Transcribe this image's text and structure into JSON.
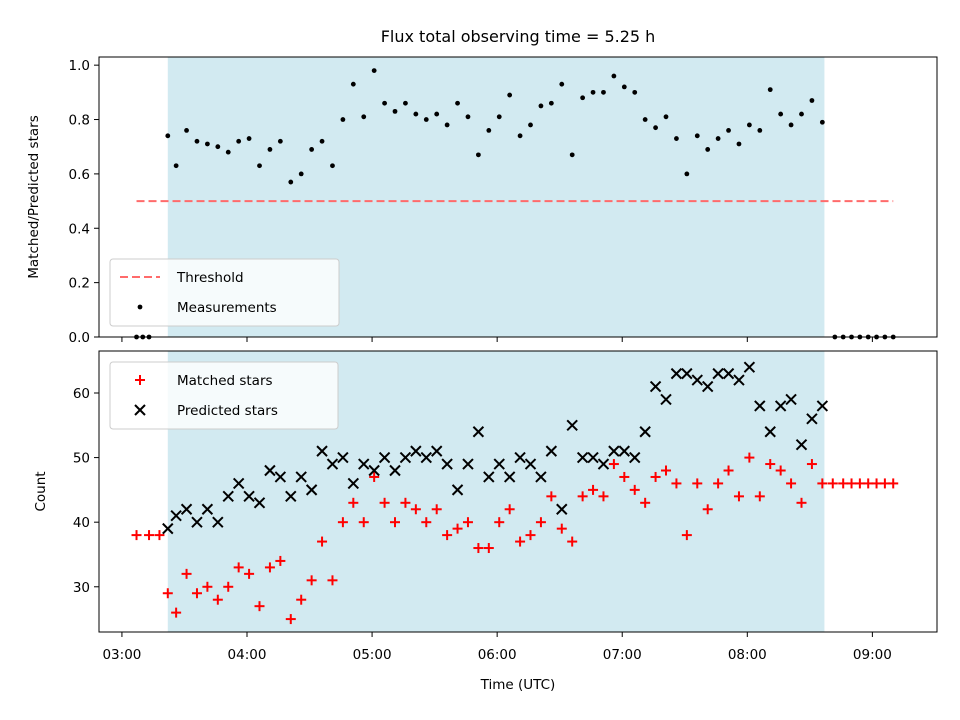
{
  "title": "Flux total observing time = 5.25 h",
  "colors": {
    "observing_window": "#add8e6",
    "threshold": "#ff6b6b",
    "measurement": "#000000",
    "matched": "#ff0000",
    "predicted": "#000000"
  },
  "chart_data": [
    {
      "type": "scatter",
      "panel": "top",
      "ylabel": "Matched/Predicted stars",
      "ylim": [
        0,
        1.03
      ],
      "yticks": [
        "0.0",
        "0.2",
        "0.4",
        "0.6",
        "0.8",
        "1.0"
      ],
      "xlim": [
        "02:49",
        "09:31"
      ],
      "xticks": [
        "03:00",
        "04:00",
        "05:00",
        "06:00",
        "07:00",
        "08:00",
        "09:00"
      ],
      "observing_window": [
        "03:22",
        "08:37"
      ],
      "legend": {
        "position": "lower-left",
        "entries": [
          "Threshold",
          "Measurements"
        ]
      },
      "series": [
        {
          "name": "Threshold",
          "style": "dashed-line",
          "x": [
            "03:07",
            "09:10"
          ],
          "y": [
            0.5,
            0.5
          ]
        },
        {
          "name": "Measurements",
          "style": "dot",
          "x": [
            "03:07",
            "03:10",
            "03:13",
            "03:22",
            "03:26",
            "03:31",
            "03:36",
            "03:41",
            "03:46",
            "03:51",
            "03:56",
            "04:01",
            "04:06",
            "04:11",
            "04:16",
            "04:21",
            "04:26",
            "04:31",
            "04:36",
            "04:41",
            "04:46",
            "04:51",
            "04:56",
            "05:01",
            "05:06",
            "05:11",
            "05:16",
            "05:21",
            "05:26",
            "05:31",
            "05:36",
            "05:41",
            "05:46",
            "05:51",
            "05:56",
            "06:01",
            "06:06",
            "06:11",
            "06:16",
            "06:21",
            "06:26",
            "06:31",
            "06:36",
            "06:41",
            "06:46",
            "06:51",
            "06:56",
            "07:01",
            "07:06",
            "07:11",
            "07:16",
            "07:21",
            "07:26",
            "07:31",
            "07:36",
            "07:41",
            "07:46",
            "07:51",
            "07:56",
            "08:01",
            "08:06",
            "08:11",
            "08:16",
            "08:21",
            "08:26",
            "08:31",
            "08:36",
            "08:42",
            "08:46",
            "08:50",
            "08:54",
            "08:58",
            "09:02",
            "09:06",
            "09:10"
          ],
          "y": [
            0,
            0,
            0,
            0.74,
            0.63,
            0.76,
            0.72,
            0.71,
            0.7,
            0.68,
            0.72,
            0.73,
            0.63,
            0.69,
            0.72,
            0.57,
            0.6,
            0.69,
            0.72,
            0.63,
            0.8,
            0.93,
            0.81,
            0.98,
            0.86,
            0.83,
            0.86,
            0.82,
            0.8,
            0.82,
            0.78,
            0.86,
            0.81,
            0.67,
            0.76,
            0.81,
            0.89,
            0.74,
            0.78,
            0.85,
            0.86,
            0.93,
            0.67,
            0.88,
            0.9,
            0.9,
            0.96,
            0.92,
            0.9,
            0.8,
            0.77,
            0.81,
            0.73,
            0.6,
            0.74,
            0.69,
            0.73,
            0.76,
            0.71,
            0.78,
            0.76,
            0.91,
            0.82,
            0.78,
            0.82,
            0.87,
            0.79,
            0,
            0,
            0,
            0,
            0,
            0,
            0,
            0
          ]
        }
      ]
    },
    {
      "type": "scatter",
      "panel": "bottom",
      "xlabel": "Time (UTC)",
      "ylabel": "Count",
      "ylim": [
        23,
        66.5
      ],
      "yticks": [
        "30",
        "40",
        "50",
        "60"
      ],
      "xlim": [
        "02:49",
        "09:31"
      ],
      "xticks": [
        "03:00",
        "04:00",
        "05:00",
        "06:00",
        "07:00",
        "08:00",
        "09:00"
      ],
      "observing_window": [
        "03:22",
        "08:37"
      ],
      "legend": {
        "position": "upper-left",
        "entries": [
          "Matched stars",
          "Predicted stars"
        ]
      },
      "series": [
        {
          "name": "Matched stars",
          "style": "plus",
          "x": [
            "03:07",
            "03:13",
            "03:18",
            "03:22",
            "03:26",
            "03:31",
            "03:36",
            "03:41",
            "03:46",
            "03:51",
            "03:56",
            "04:01",
            "04:06",
            "04:11",
            "04:16",
            "04:21",
            "04:26",
            "04:31",
            "04:36",
            "04:41",
            "04:46",
            "04:51",
            "04:56",
            "05:01",
            "05:06",
            "05:11",
            "05:16",
            "05:21",
            "05:26",
            "05:31",
            "05:36",
            "05:41",
            "05:46",
            "05:51",
            "05:56",
            "06:01",
            "06:06",
            "06:11",
            "06:16",
            "06:21",
            "06:26",
            "06:31",
            "06:36",
            "06:41",
            "06:46",
            "06:51",
            "06:56",
            "07:01",
            "07:06",
            "07:11",
            "07:16",
            "07:21",
            "07:26",
            "07:31",
            "07:36",
            "07:41",
            "07:46",
            "07:51",
            "07:56",
            "08:01",
            "08:06",
            "08:11",
            "08:16",
            "08:21",
            "08:26",
            "08:31",
            "08:36",
            "08:41",
            "08:46",
            "08:50",
            "08:54",
            "08:58",
            "09:02",
            "09:06",
            "09:10"
          ],
          "y": [
            38,
            38,
            38,
            29,
            26,
            32,
            29,
            30,
            28,
            30,
            33,
            32,
            27,
            33,
            34,
            25,
            28,
            31,
            37,
            31,
            40,
            43,
            40,
            47,
            43,
            40,
            43,
            42,
            40,
            42,
            38,
            39,
            40,
            36,
            36,
            40,
            42,
            37,
            38,
            40,
            44,
            39,
            37,
            44,
            45,
            44,
            49,
            47,
            45,
            43,
            47,
            48,
            46,
            38,
            46,
            42,
            46,
            48,
            44,
            50,
            44,
            49,
            48,
            46,
            43,
            49,
            46,
            46,
            46,
            46,
            46,
            46,
            46,
            46,
            46
          ]
        },
        {
          "name": "Predicted stars",
          "style": "x",
          "x": [
            "03:22",
            "03:26",
            "03:31",
            "03:36",
            "03:41",
            "03:46",
            "03:51",
            "03:56",
            "04:01",
            "04:06",
            "04:11",
            "04:16",
            "04:21",
            "04:26",
            "04:31",
            "04:36",
            "04:41",
            "04:46",
            "04:51",
            "04:56",
            "05:01",
            "05:06",
            "05:11",
            "05:16",
            "05:21",
            "05:26",
            "05:31",
            "05:36",
            "05:41",
            "05:46",
            "05:51",
            "05:56",
            "06:01",
            "06:06",
            "06:11",
            "06:16",
            "06:21",
            "06:26",
            "06:31",
            "06:36",
            "06:41",
            "06:46",
            "06:51",
            "06:56",
            "07:01",
            "07:06",
            "07:11",
            "07:16",
            "07:21",
            "07:26",
            "07:31",
            "07:36",
            "07:41",
            "07:46",
            "07:51",
            "07:56",
            "08:01",
            "08:06",
            "08:11",
            "08:16",
            "08:21",
            "08:26",
            "08:31",
            "08:36"
          ],
          "y": [
            39,
            41,
            42,
            40,
            42,
            40,
            44,
            46,
            44,
            43,
            48,
            47,
            44,
            47,
            45,
            51,
            49,
            50,
            46,
            49,
            48,
            50,
            48,
            50,
            51,
            50,
            51,
            49,
            45,
            49,
            54,
            47,
            49,
            47,
            50,
            49,
            47,
            51,
            42,
            55,
            50,
            50,
            49,
            51,
            51,
            50,
            54,
            61,
            59,
            63,
            63,
            62,
            61,
            63,
            63,
            62,
            64,
            58,
            54,
            58,
            59,
            52,
            56,
            58
          ]
        }
      ]
    }
  ]
}
